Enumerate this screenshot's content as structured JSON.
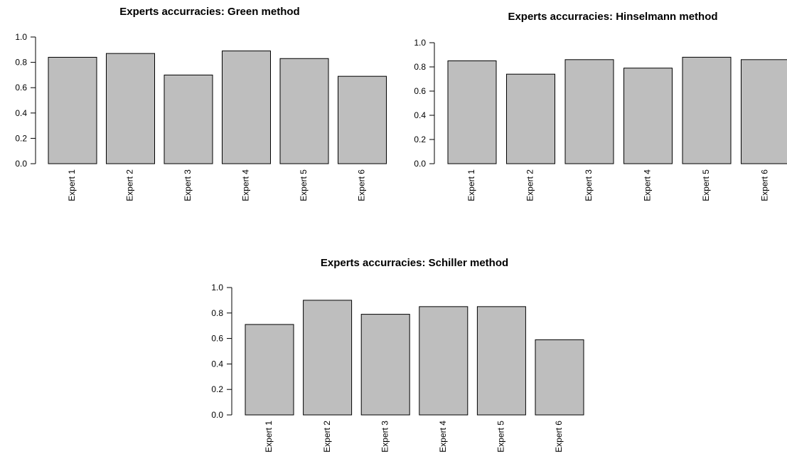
{
  "colors": {
    "bar_fill": "#bebebe",
    "bar_stroke": "#000000",
    "background": "#ffffff"
  },
  "chart_data": [
    {
      "type": "bar",
      "title": "Experts accurracies: Green method",
      "categories": [
        "Expert 1",
        "Expert 2",
        "Expert 3",
        "Expert 4",
        "Expert 5",
        "Expert 6"
      ],
      "values": [
        0.84,
        0.87,
        0.7,
        0.89,
        0.83,
        0.69
      ],
      "ylim": [
        0,
        1
      ],
      "yticks": [
        "0.0",
        "0.2",
        "0.4",
        "0.6",
        "0.8",
        "1.0"
      ],
      "xlabel": "",
      "ylabel": "",
      "grid": false,
      "legend": "none"
    },
    {
      "type": "bar",
      "title": "Experts accurracies: Hinselmann method",
      "categories": [
        "Expert 1",
        "Expert 2",
        "Expert 3",
        "Expert 4",
        "Expert 5",
        "Expert 6"
      ],
      "values": [
        0.85,
        0.74,
        0.86,
        0.79,
        0.88,
        0.86
      ],
      "ylim": [
        0,
        1
      ],
      "yticks": [
        "0.0",
        "0.2",
        "0.4",
        "0.6",
        "0.8",
        "1.0"
      ],
      "xlabel": "",
      "ylabel": "",
      "grid": false,
      "legend": "none"
    },
    {
      "type": "bar",
      "title": "Experts accurracies: Schiller method",
      "categories": [
        "Expert 1",
        "Expert 2",
        "Expert 3",
        "Expert 4",
        "Expert 5",
        "Expert 6"
      ],
      "values": [
        0.71,
        0.9,
        0.79,
        0.85,
        0.85,
        0.59
      ],
      "ylim": [
        0,
        1
      ],
      "yticks": [
        "0.0",
        "0.2",
        "0.4",
        "0.6",
        "0.8",
        "1.0"
      ],
      "xlabel": "",
      "ylabel": "",
      "grid": false,
      "legend": "none"
    }
  ]
}
